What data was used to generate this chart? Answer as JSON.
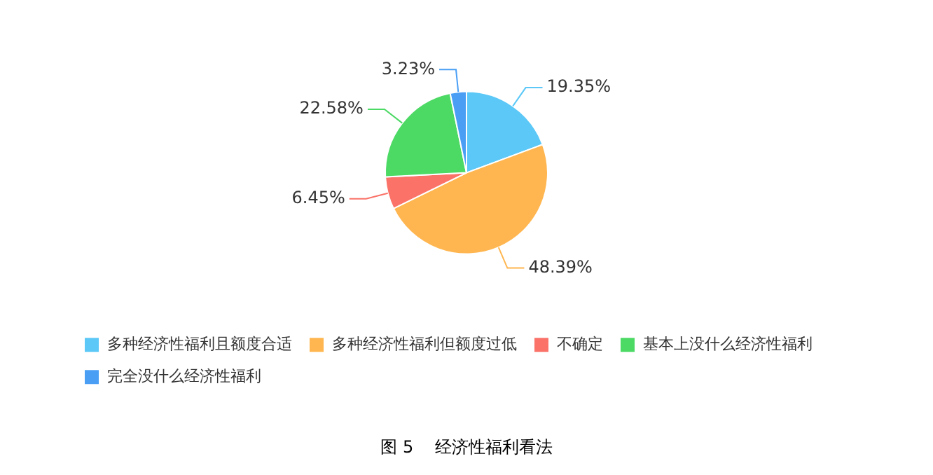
{
  "chart_data": {
    "type": "pie",
    "title": "图 5    经济性福利看法",
    "categories": [
      "多种经济性福利且额度合适",
      "多种经济性福利但额度过低",
      "不确定",
      "基本上没什么经济性福利",
      "完全没什么经济性福利"
    ],
    "values": [
      19.35,
      48.39,
      6.45,
      22.58,
      3.23
    ],
    "colors": [
      "#5bc8f7",
      "#ffb650",
      "#fa7268",
      "#4cd964",
      "#4a9ff5"
    ],
    "value_labels": [
      "19.35%",
      "48.39%",
      "6.45%",
      "22.58%",
      "3.23%"
    ],
    "legend": "bottom left"
  }
}
